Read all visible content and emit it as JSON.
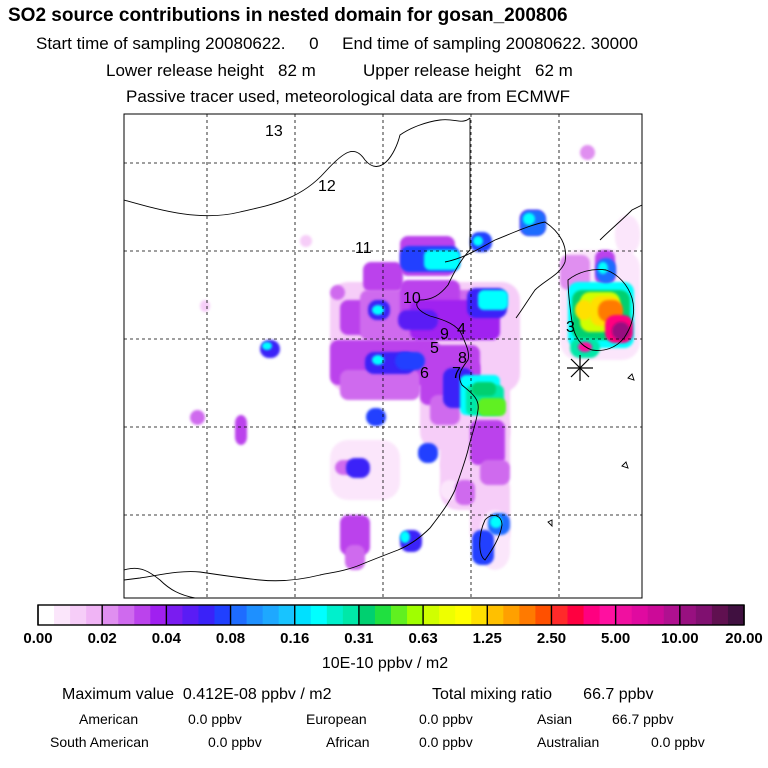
{
  "header": {
    "title": "SO2 source contributions in nested domain for gosan_200806",
    "sampling_line": "Start time of sampling 20080622.     0     End time of sampling 20080622. 30000",
    "release_line": "Lower release height   82 m          Upper release height   62 m",
    "tracer_line": "Passive tracer used, meteorological data are from ECMWF"
  },
  "chart_data": {
    "type": "heatmap",
    "title": "SO2 source contributions in nested domain for gosan_200806",
    "variable": "SO2 source contribution",
    "units": "10E-10 ppbv / m2",
    "colorbar_ticks": [
      "0.00",
      "0.02",
      "0.04",
      "0.08",
      "0.16",
      "0.31",
      "0.63",
      "1.25",
      "2.50",
      "5.00",
      "10.00",
      "20.00"
    ],
    "colors": [
      "#ffffff",
      "#fbe6fb",
      "#f6cdf8",
      "#f0b4f5",
      "#e08ff0",
      "#cf6aee",
      "#bb43ec",
      "#a020f0",
      "#7a1cf0",
      "#5a1cf5",
      "#3a22f8",
      "#2040ff",
      "#1e6cff",
      "#1e90ff",
      "#1ea8ff",
      "#18c4ff",
      "#00e0ff",
      "#00ffff",
      "#00f0cc",
      "#00e8a8",
      "#00d070",
      "#20e040",
      "#60f020",
      "#a0ff00",
      "#d0ff00",
      "#eeff00",
      "#ffff00",
      "#ffe000",
      "#ffc000",
      "#ffa000",
      "#ff7a00",
      "#ff5000",
      "#ff2a2a",
      "#ff0040",
      "#ff0080",
      "#ff10a0",
      "#f010a0",
      "#e00aa0",
      "#cc0a98",
      "#b01090",
      "#981080",
      "#801070",
      "#601050",
      "#401040"
    ],
    "receptor_label": "gosan",
    "region_labels": [
      "13",
      "12",
      "11",
      "10",
      "9",
      "4",
      "5",
      "8",
      "6",
      "7",
      "3"
    ],
    "grid": true
  },
  "stats": {
    "max_line": "Maximum value  0.412E-08 ppbv / m2",
    "total_line": "Total mixing ratio       66.7 ppbv"
  },
  "sources": [
    {
      "name": "American",
      "value": "0.0 ppbv"
    },
    {
      "name": "European",
      "value": "0.0 ppbv"
    },
    {
      "name": "Asian",
      "value": "66.7 ppbv"
    },
    {
      "name": "South American",
      "value": "0.0 ppbv"
    },
    {
      "name": "African",
      "value": "0.0 ppbv"
    },
    {
      "name": "Australian",
      "value": "0.0 ppbv"
    }
  ]
}
